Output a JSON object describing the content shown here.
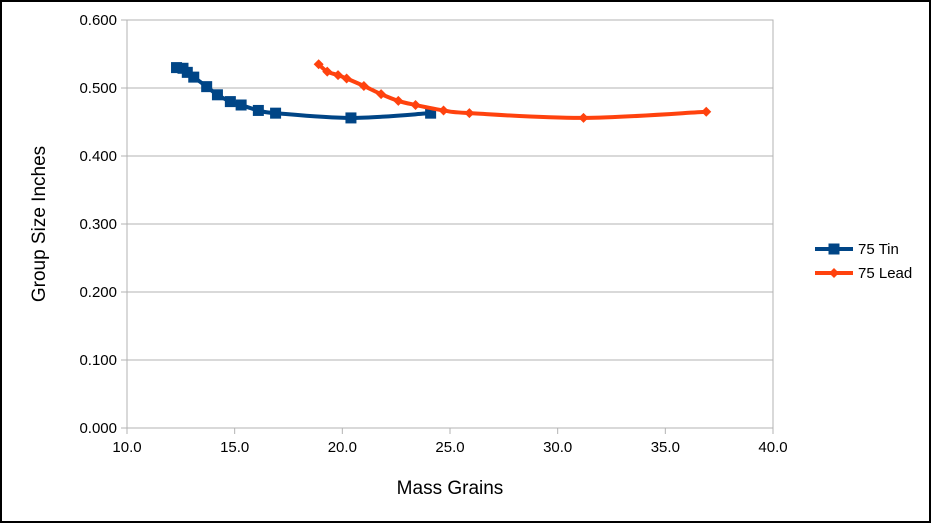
{
  "chart_data": {
    "type": "scatter",
    "title": "",
    "xlabel": "Mass Grains",
    "ylabel": "Group Size Inches",
    "xlim": [
      10.0,
      40.0
    ],
    "ylim": [
      0.0,
      0.6
    ],
    "x_ticks": [
      "10.0",
      "15.0",
      "20.0",
      "25.0",
      "30.0",
      "35.0",
      "40.0"
    ],
    "y_ticks": [
      "0.000",
      "0.100",
      "0.200",
      "0.300",
      "0.400",
      "0.500",
      "0.600"
    ],
    "grid": "horizontal",
    "legend_position": "right",
    "series": [
      {
        "name": "75 Tin",
        "color": "#004586",
        "marker": "square",
        "x": [
          12.3,
          12.6,
          12.8,
          13.1,
          13.7,
          14.2,
          14.8,
          15.3,
          16.1,
          16.9,
          20.4,
          24.1
        ],
        "y": [
          0.53,
          0.529,
          0.523,
          0.516,
          0.502,
          0.49,
          0.48,
          0.475,
          0.467,
          0.463,
          0.456,
          0.463
        ]
      },
      {
        "name": "75 Lead",
        "color": "#ff420e",
        "marker": "diamond",
        "x": [
          18.9,
          19.3,
          19.8,
          20.2,
          21.0,
          21.8,
          22.6,
          23.4,
          24.7,
          25.9,
          31.2,
          36.9
        ],
        "y": [
          0.535,
          0.524,
          0.519,
          0.514,
          0.503,
          0.491,
          0.481,
          0.475,
          0.467,
          0.463,
          0.456,
          0.465
        ]
      }
    ]
  }
}
